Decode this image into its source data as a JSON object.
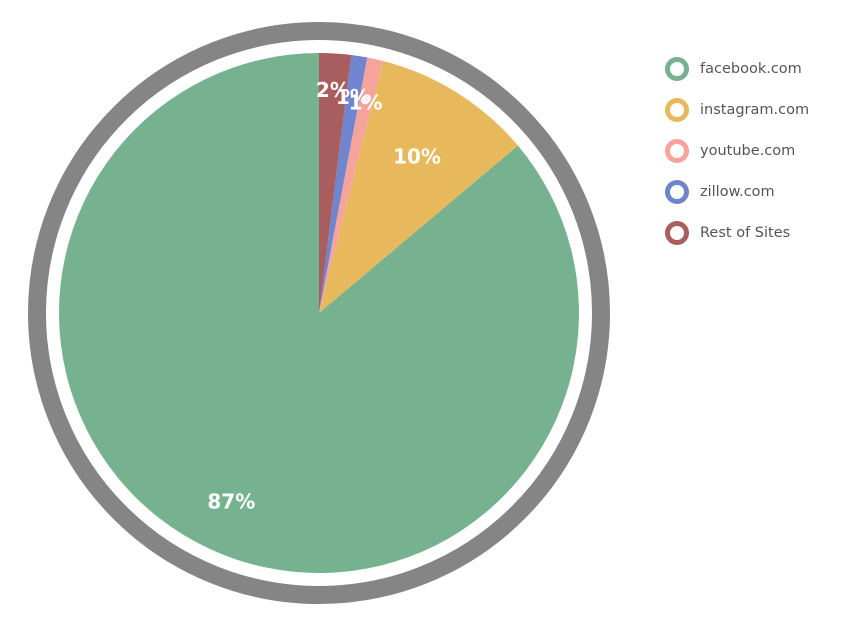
{
  "chart_data": {
    "type": "pie",
    "categories": [
      "facebook.com",
      "instagram.com",
      "youtube.com",
      "zillow.com",
      "Rest of Sites"
    ],
    "values": [
      87,
      10,
      1,
      1,
      2
    ],
    "labels": [
      "87%",
      "10%",
      "1%",
      "1%",
      "2%"
    ],
    "colors": [
      "#77b290",
      "#e8b85c",
      "#f6a39c",
      "#7085cf",
      "#a85e5f"
    ],
    "legend_position": "right",
    "start_angle": "12 o'clock",
    "direction": "counterclockwise",
    "ring_color": "#858585"
  }
}
